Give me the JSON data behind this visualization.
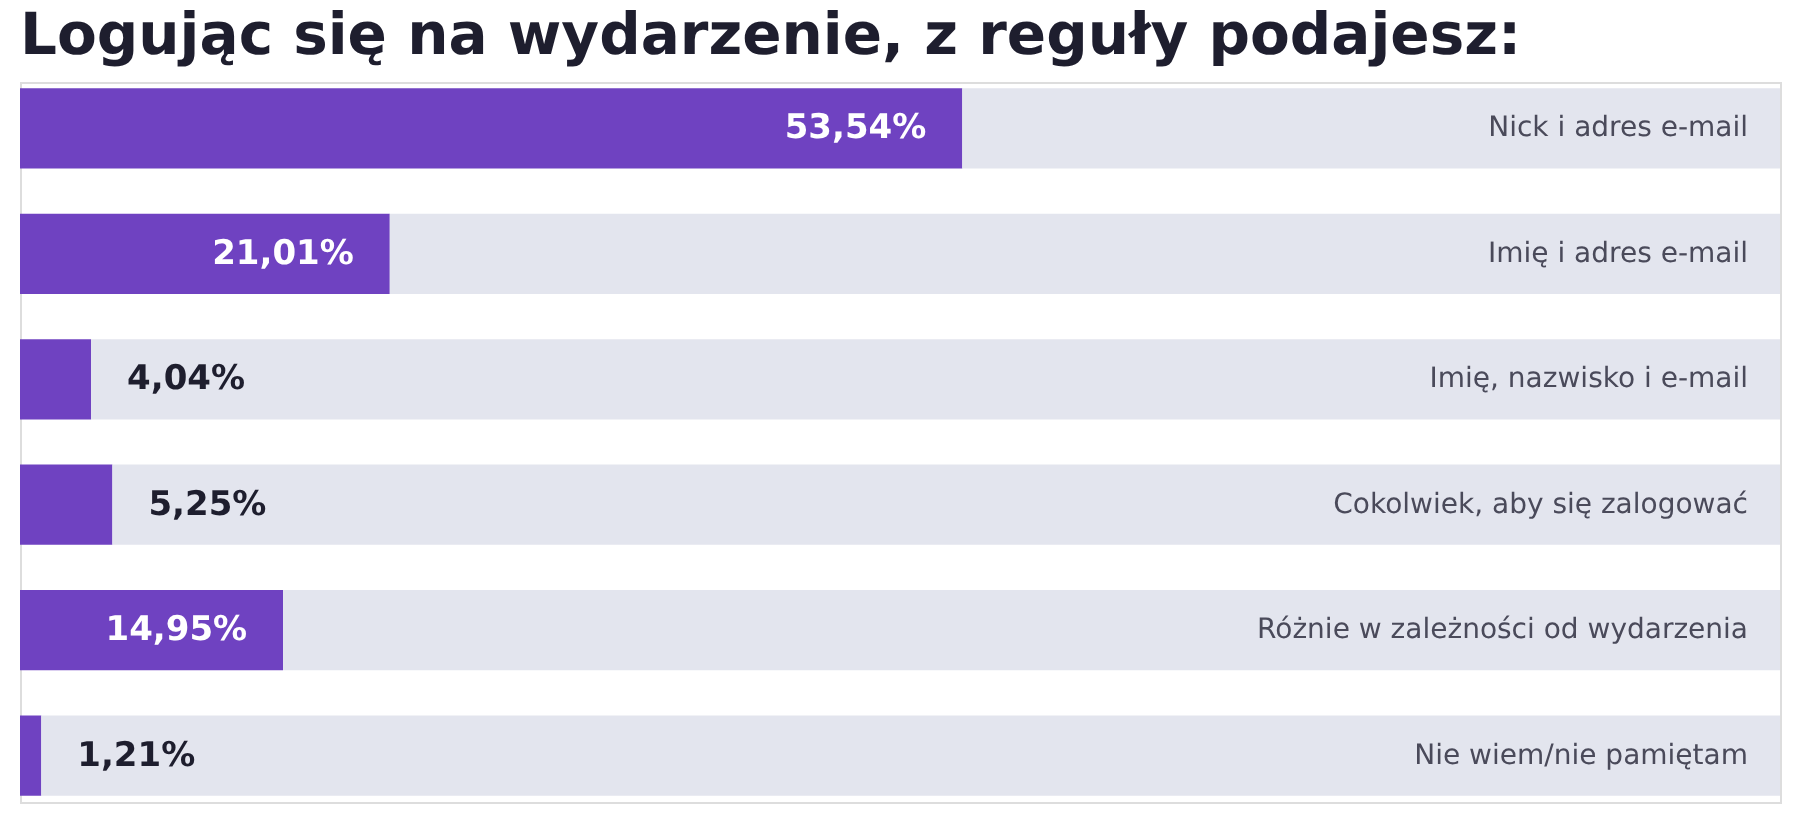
{
  "chart_data": {
    "type": "bar",
    "orientation": "horizontal",
    "stacked": true,
    "title": "Logując się na wydarzenie, z reguły podajesz:",
    "categories": [
      "Nick i adres e-mail",
      "Imię i adres e-mail",
      "Imię, nazwisko i e-mail",
      "Cokolwiek, aby się zalogować",
      "Różnie w zależności od wydarzenia",
      "Nie wiem/nie pamiętam"
    ],
    "series": [
      {
        "color": "#6f42c1",
        "values": [
          53.54,
          21.01,
          4.04,
          5.25,
          14.95,
          1.21
        ],
        "value_labels": [
          "53,54%",
          "21,01%",
          "4,04%",
          "5,25%",
          "14,95%",
          "1,21%"
        ]
      },
      {
        "color": "#e3e5ee",
        "values": [
          46.46,
          78.99,
          95.96,
          94.75,
          85.05,
          98.79
        ]
      }
    ],
    "xlim": [
      0,
      100
    ],
    "tick_labels": false,
    "grid": false,
    "legend": false
  }
}
